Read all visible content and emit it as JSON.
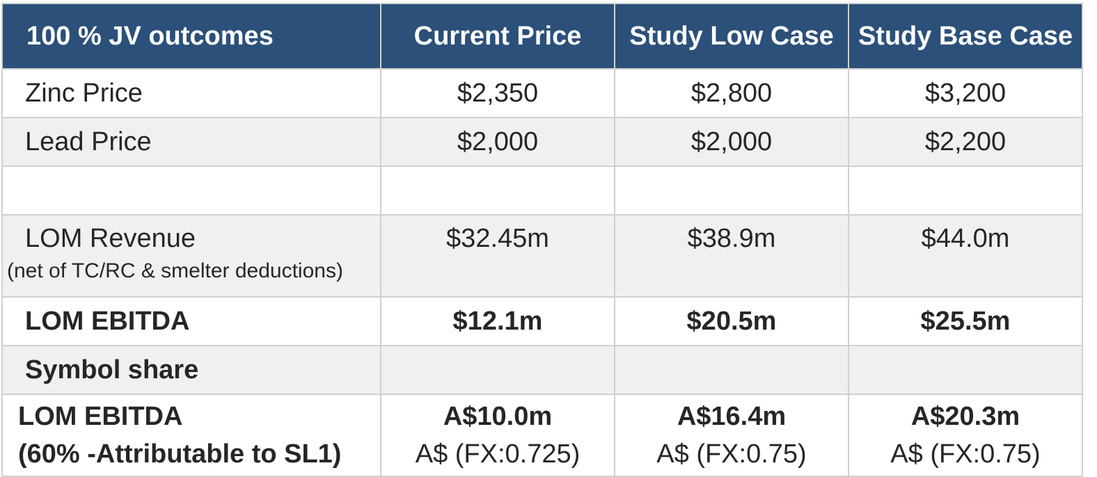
{
  "table": {
    "headers": [
      "100 % JV outcomes",
      "Current Price",
      "Study Low Case",
      "Study Base Case"
    ],
    "zinc": {
      "label": "Zinc Price",
      "values": [
        "$2,350",
        "$2,800",
        "$3,200"
      ]
    },
    "lead": {
      "label": "Lead Price",
      "values": [
        "$2,000",
        "$2,000",
        "$2,200"
      ]
    },
    "revenue": {
      "label": "LOM Revenue",
      "note": "(net of TC/RC & smelter deductions)",
      "values": [
        "$32.45m",
        "$38.9m",
        "$44.0m"
      ]
    },
    "ebitda": {
      "label": "LOM EBITDA",
      "values": [
        "$12.1m",
        "$20.5m",
        "$25.5m"
      ]
    },
    "symbol_share": {
      "label": "Symbol share"
    },
    "attributable": {
      "label_line1": "LOM EBITDA",
      "label_line2": "(60% -Attributable to SL1)",
      "values": [
        "A$10.0m",
        "A$16.4m",
        "A$20.3m"
      ],
      "fx": [
        "A$ (FX:0.725)",
        "A$ (FX:0.75)",
        "A$ (FX:0.75)"
      ]
    }
  },
  "colors": {
    "header_bg": "#2b5079",
    "header_text": "#ffffff",
    "stripe": "#f0f0f0",
    "border": "#d0d0d0"
  }
}
